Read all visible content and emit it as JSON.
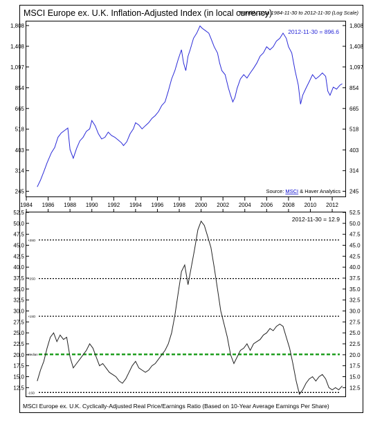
{
  "header": {
    "title": "MSCI Europe ex. U.K. Inflation-Adjusted Index (in local currency)",
    "note": "Monthly Data 1984-11-30 to 2012-11-30 (Log Scale)"
  },
  "top_panel": {
    "readout": "2012-11-30 = 896.6",
    "source_prefix": "Source: ",
    "source_link": "MSCI",
    "source_suffix": " & Haver Analytics"
  },
  "bottom_panel": {
    "readout": "2012-11-30 = 12.9",
    "caption": "MSCI Europe ex. U.K. Cyclically-Adjusted Real Price/Earnings Ratio (Based on 10-Year Average Earnings Per Share)",
    "band_labels": {
      "plus3": "+3SD",
      "plus2": "+2SD",
      "plus1": "+1SD",
      "median": "Median",
      "minus1": "-1SD"
    }
  },
  "colors": {
    "index_line": "#2a2ad8",
    "cape_line": "#222222",
    "median_line": "#1f9e1f",
    "link": "#0000cc",
    "band_line": "#000000"
  },
  "chart_data": [
    {
      "type": "line",
      "title": "MSCI Europe ex. U.K. Inflation-Adjusted Index (in local currency)",
      "scale": "log",
      "x_ticks": [
        "1984",
        "1986",
        "1988",
        "1990",
        "1992",
        "1994",
        "1996",
        "1998",
        "2000",
        "2002",
        "2004",
        "2006",
        "2008",
        "2010",
        "2012"
      ],
      "y_ticks": [
        245,
        314,
        403,
        518,
        665,
        854,
        1097,
        1408,
        1808
      ],
      "ylim": [
        230,
        1900
      ],
      "grid": false,
      "series": [
        {
          "x": [
            1985.0,
            1985.3,
            1985.6,
            1985.9,
            1986.3,
            1986.6,
            1986.9,
            1987.2,
            1987.5,
            1987.8,
            1988.0,
            1988.3,
            1988.6,
            1988.9,
            1989.2,
            1989.5,
            1989.8,
            1990.0,
            1990.3,
            1990.6,
            1990.9,
            1991.2,
            1991.5,
            1991.8,
            1992.1,
            1992.4,
            1992.7,
            1992.9,
            1993.2,
            1993.5,
            1993.8,
            1994.0,
            1994.3,
            1994.6,
            1994.9,
            1995.2,
            1995.5,
            1995.8,
            1996.1,
            1996.4,
            1996.7,
            1997.0,
            1997.3,
            1997.6,
            1997.9,
            1998.2,
            1998.4,
            1998.6,
            1998.8,
            1999.0,
            1999.3,
            1999.6,
            1999.9,
            2000.1,
            2000.4,
            2000.7,
            2000.9,
            2001.2,
            2001.5,
            2001.7,
            2001.9,
            2002.2,
            2002.5,
            2002.7,
            2002.9,
            2003.1,
            2003.3,
            2003.6,
            2003.9,
            2004.2,
            2004.5,
            2004.8,
            2005.1,
            2005.4,
            2005.7,
            2006.0,
            2006.3,
            2006.6,
            2006.9,
            2007.2,
            2007.5,
            2007.8,
            2008.0,
            2008.3,
            2008.6,
            2008.9,
            2009.1,
            2009.3,
            2009.6,
            2009.9,
            2010.2,
            2010.5,
            2010.8,
            2011.1,
            2011.4,
            2011.6,
            2011.8,
            2012.1,
            2012.4,
            2012.7,
            2012.92
          ],
          "y": [
            258,
            280,
            310,
            345,
            390,
            415,
            470,
            495,
            510,
            525,
            405,
            365,
            410,
            450,
            470,
            505,
            520,
            575,
            540,
            490,
            460,
            470,
            500,
            480,
            470,
            455,
            440,
            425,
            445,
            490,
            520,
            560,
            545,
            520,
            540,
            560,
            590,
            610,
            640,
            690,
            720,
            820,
            950,
            1050,
            1200,
            1350,
            1150,
            1050,
            1250,
            1350,
            1550,
            1650,
            1800,
            1750,
            1700,
            1650,
            1550,
            1400,
            1300,
            1150,
            1050,
            1000,
            850,
            780,
            720,
            760,
            850,
            950,
            1000,
            960,
            1020,
            1080,
            1150,
            1250,
            1300,
            1400,
            1350,
            1400,
            1500,
            1550,
            1650,
            1550,
            1400,
            1300,
            1050,
            880,
            700,
            780,
            850,
            920,
            1000,
            950,
            980,
            1020,
            980,
            820,
            780,
            860,
            840,
            880,
            896.6
          ]
        }
      ]
    },
    {
      "type": "line",
      "title": "MSCI Europe ex. U.K. Cyclically-Adjusted Real Price/Earnings Ratio (Based on 10-Year Average Earnings Per Share)",
      "x_ticks": [
        "1984",
        "1986",
        "1988",
        "1990",
        "1992",
        "1994",
        "1996",
        "1998",
        "2000",
        "2002",
        "2004",
        "2006",
        "2008",
        "2010",
        "2012"
      ],
      "y_ticks": [
        12.5,
        15.0,
        17.5,
        20.0,
        22.5,
        25.0,
        27.5,
        30.0,
        32.5,
        35.0,
        37.5,
        40.0,
        42.5,
        45.0,
        47.5,
        50.0,
        52.5
      ],
      "ylim": [
        10.5,
        52.5
      ],
      "reference_lines": [
        {
          "label": "+3SD",
          "value": 46.2
        },
        {
          "label": "+2SD",
          "value": 37.4
        },
        {
          "label": "+1SD",
          "value": 28.8
        },
        {
          "label": "Median",
          "value": 20.1
        },
        {
          "label": "-1SD",
          "value": 11.4
        }
      ],
      "series": [
        {
          "x": [
            1985.0,
            1985.3,
            1985.6,
            1985.9,
            1986.2,
            1986.5,
            1986.8,
            1987.1,
            1987.4,
            1987.7,
            1988.0,
            1988.3,
            1988.6,
            1988.9,
            1989.2,
            1989.5,
            1989.8,
            1990.1,
            1990.4,
            1990.7,
            1991.0,
            1991.3,
            1991.6,
            1991.9,
            1992.2,
            1992.5,
            1992.8,
            1993.1,
            1993.4,
            1993.7,
            1994.0,
            1994.3,
            1994.6,
            1994.9,
            1995.2,
            1995.5,
            1995.8,
            1996.1,
            1996.4,
            1996.7,
            1997.0,
            1997.3,
            1997.6,
            1997.9,
            1998.2,
            1998.5,
            1998.8,
            1999.1,
            1999.4,
            1999.7,
            2000.0,
            2000.3,
            2000.6,
            2000.9,
            2001.2,
            2001.5,
            2001.8,
            2002.1,
            2002.4,
            2002.7,
            2003.0,
            2003.3,
            2003.6,
            2003.9,
            2004.2,
            2004.5,
            2004.8,
            2005.1,
            2005.4,
            2005.7,
            2006.0,
            2006.3,
            2006.6,
            2006.9,
            2007.2,
            2007.5,
            2007.8,
            2008.1,
            2008.4,
            2008.7,
            2009.0,
            2009.3,
            2009.6,
            2009.9,
            2010.2,
            2010.5,
            2010.8,
            2011.1,
            2011.4,
            2011.7,
            2012.0,
            2012.3,
            2012.6,
            2012.92
          ],
          "y": [
            14.0,
            16.5,
            18.5,
            21.5,
            24.0,
            25.0,
            23.0,
            24.5,
            23.5,
            24.0,
            19.5,
            17.0,
            18.0,
            19.0,
            20.0,
            21.0,
            22.5,
            21.5,
            19.5,
            17.5,
            18.0,
            17.0,
            16.0,
            15.5,
            15.0,
            14.0,
            13.5,
            14.5,
            16.0,
            17.5,
            18.5,
            17.0,
            16.5,
            16.0,
            16.5,
            17.5,
            18.0,
            19.0,
            20.0,
            21.0,
            22.5,
            25.0,
            29.0,
            34.0,
            39.0,
            40.5,
            36.0,
            40.0,
            44.0,
            48.5,
            50.5,
            49.5,
            47.0,
            44.5,
            40.0,
            35.0,
            30.0,
            27.0,
            24.0,
            20.0,
            18.0,
            19.5,
            21.0,
            21.5,
            22.5,
            21.0,
            22.5,
            23.0,
            23.5,
            24.5,
            25.0,
            26.0,
            25.5,
            26.5,
            27.0,
            26.5,
            24.0,
            21.5,
            18.0,
            14.0,
            11.0,
            12.0,
            13.5,
            14.5,
            15.0,
            14.0,
            15.0,
            15.5,
            14.5,
            12.5,
            12.0,
            12.5,
            12.0,
            12.9
          ]
        }
      ]
    }
  ]
}
